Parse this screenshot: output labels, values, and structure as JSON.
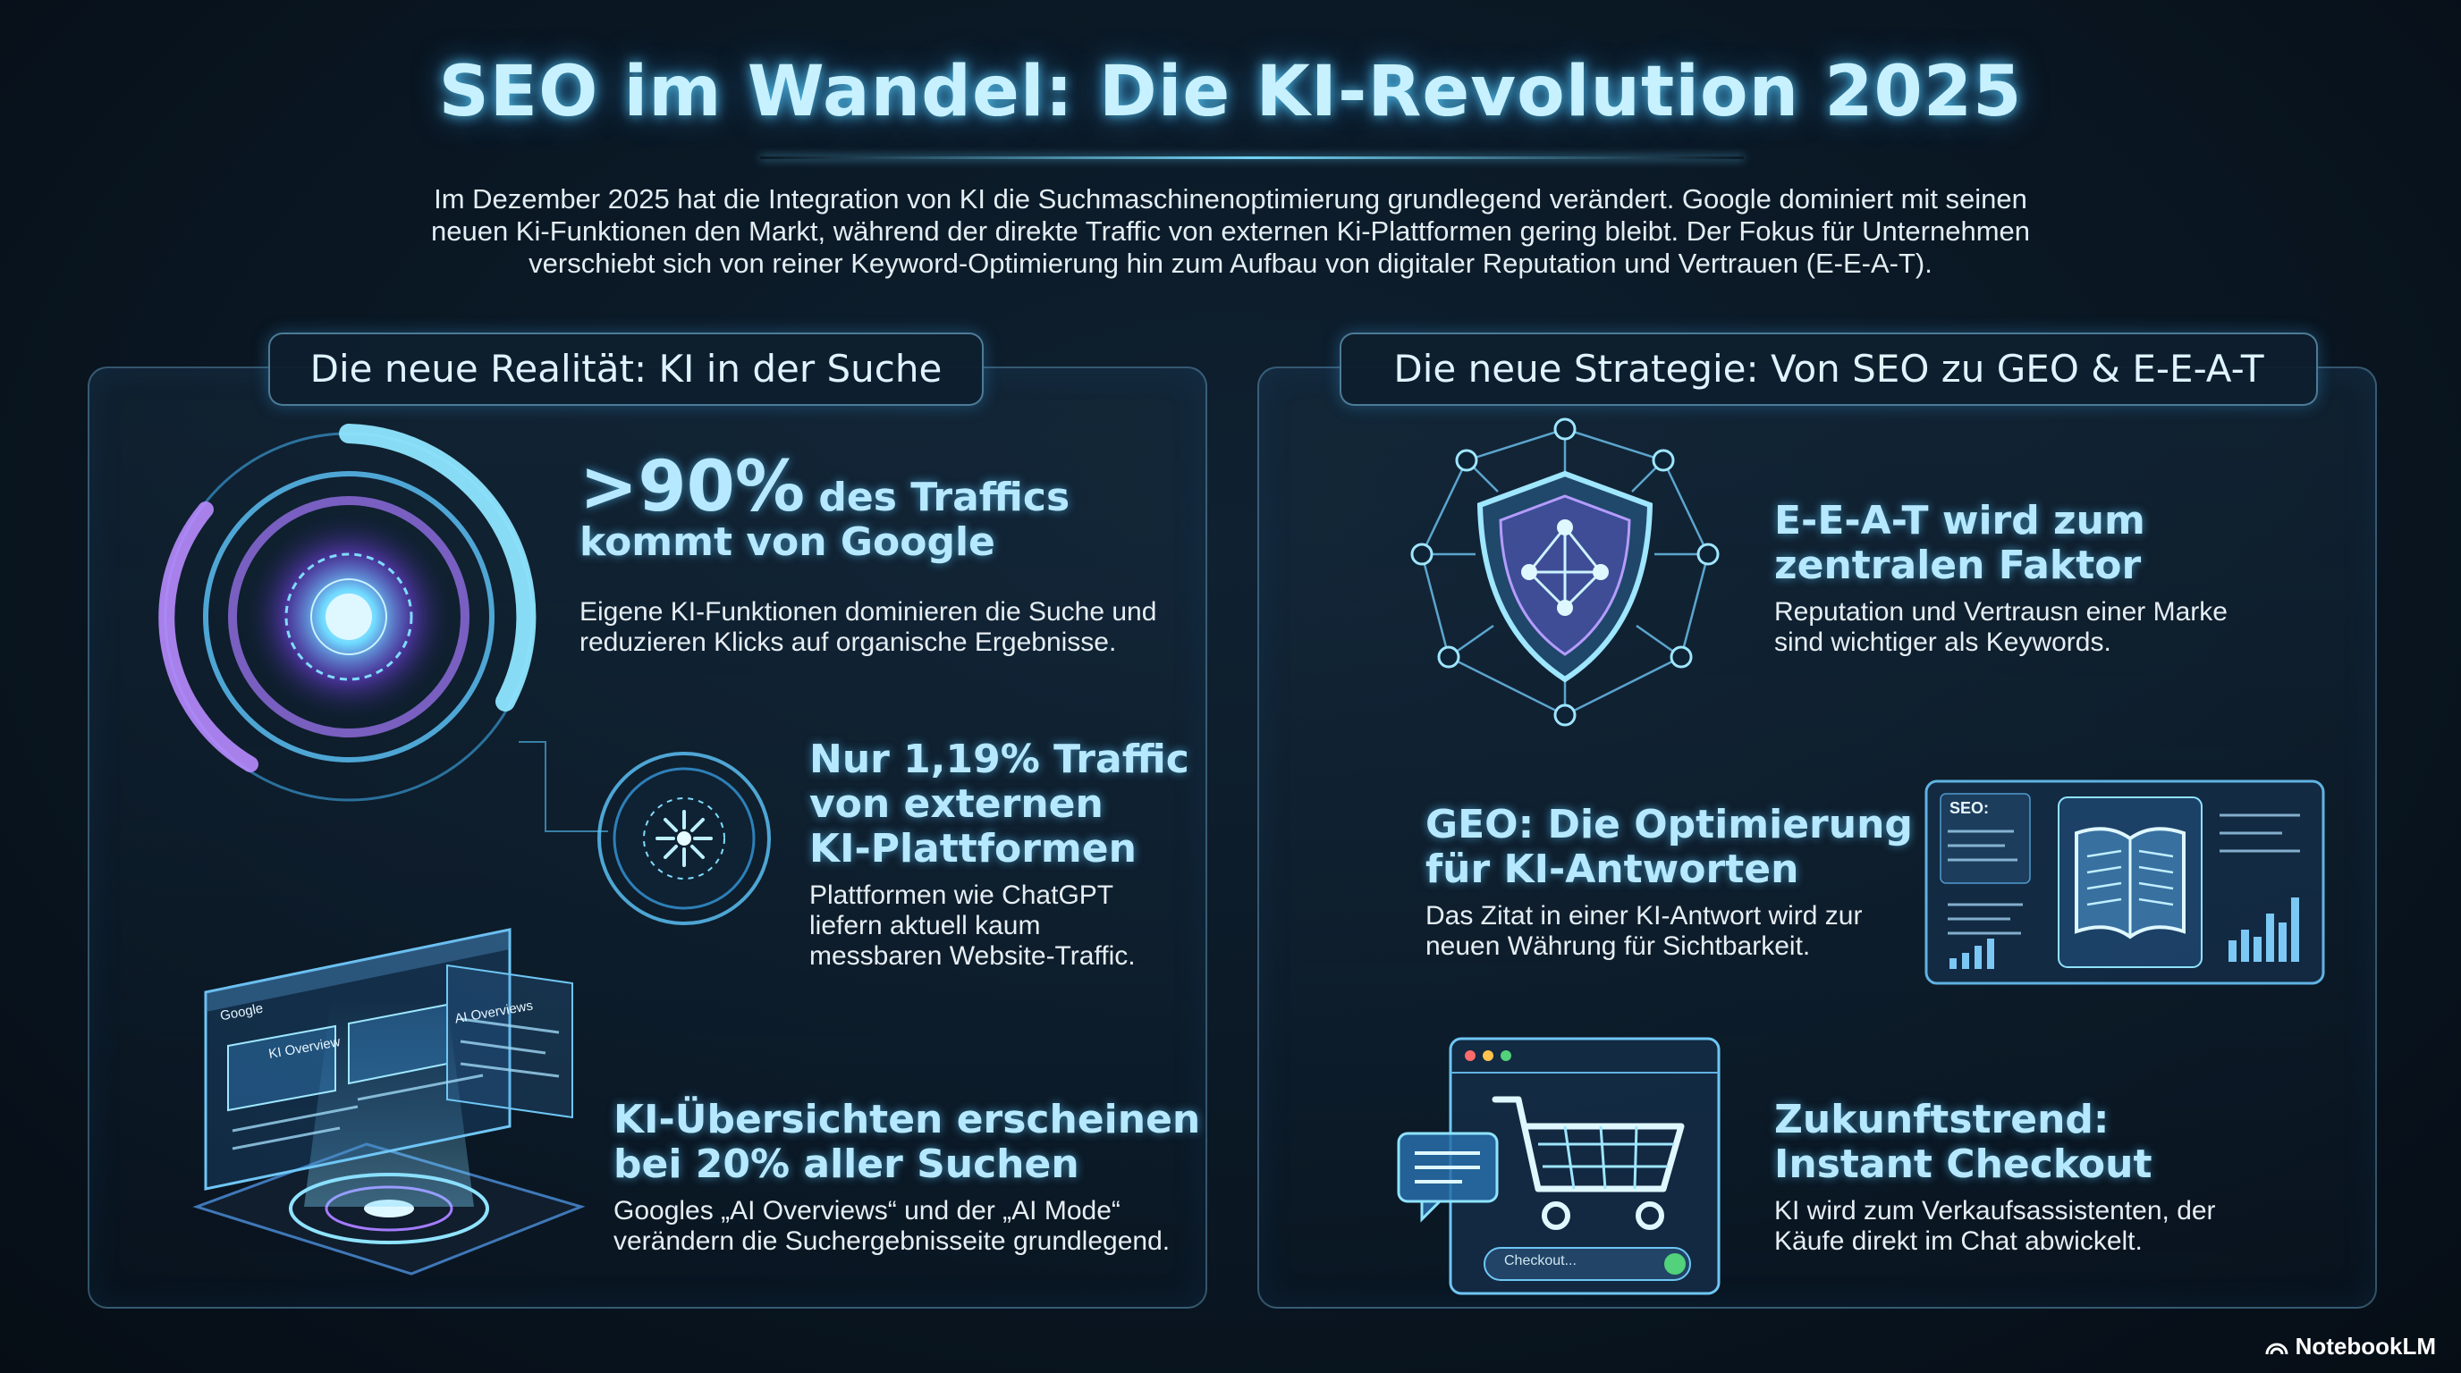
{
  "title": "SEO im Wandel: Die KI-Revolution 2025",
  "intro": "Im Dezember 2025 hat die Integration von KI die Suchmaschinenoptimierung grundlegend verändert. Google dominiert mit seinen neuen Ki-Funktionen den Markt, während der direkte Traffic von externen Ki-Plattformen gering bleibt. Der Fokus für Unternehmen verschiebt sich von reiner Keyword-Optimierung hin zum Aufbau von digitaler Reputation und Vertrauen (E-E-A-T).",
  "left_panel": {
    "heading": "Die neue Realität: KI in der Suche",
    "stat1": {
      "value": ">90%",
      "title_rest": " des Traffics",
      "title_line2": "kommt von Google",
      "desc": "Eigene KI-Funktionen dominieren die Suche und reduzieren Klicks auf organische Ergebnisse."
    },
    "stat2": {
      "title_line1": "Nur 1,19% Traffic",
      "title_line2": "von externen",
      "title_line3": "KI-Plattformen",
      "desc": "Plattformen wie ChatGPT liefern aktuell kaum messbaren Website-Traffic."
    },
    "stat3": {
      "title_line1": "KI-Übersichten erscheinen",
      "title_line2": "bei 20% aller Suchen",
      "desc": "Googles „AI Overviews“ und der „AI Mode“ verändern die Suchergebnisseite grundlegend."
    },
    "mock_browser": {
      "logo": "Google",
      "card1": "KI Overview",
      "card2": "AI Overviews"
    }
  },
  "right_panel": {
    "heading": "Die neue Strategie: Von SEO zu GEO & E-E-A-T",
    "item1": {
      "title_line1": "E-E-A-T wird zum",
      "title_line2": "zentralen Faktor",
      "desc": "Reputation und Vertrausn einer Marke sind wichtiger als Keywords."
    },
    "item2": {
      "title_line1": "GEO: Die Optimierung",
      "title_line2": "für KI-Antworten",
      "desc": "Das Zitat in einer KI-Antwort wird zur neuen Währung für Sichtbarkeit.",
      "screen_label": "SEO:"
    },
    "item3": {
      "title_line1": "Zukunftstrend:",
      "title_line2": "Instant Checkout",
      "desc": "KI wird zum Verkaufsassistenten, der Käufe direkt im Chat abwickelt.",
      "input_placeholder": "Checkout..."
    }
  },
  "brand": "NotebookLM",
  "colors": {
    "accent": "#5fd4ff",
    "purple": "#a57bff",
    "background": "#0a1723"
  }
}
